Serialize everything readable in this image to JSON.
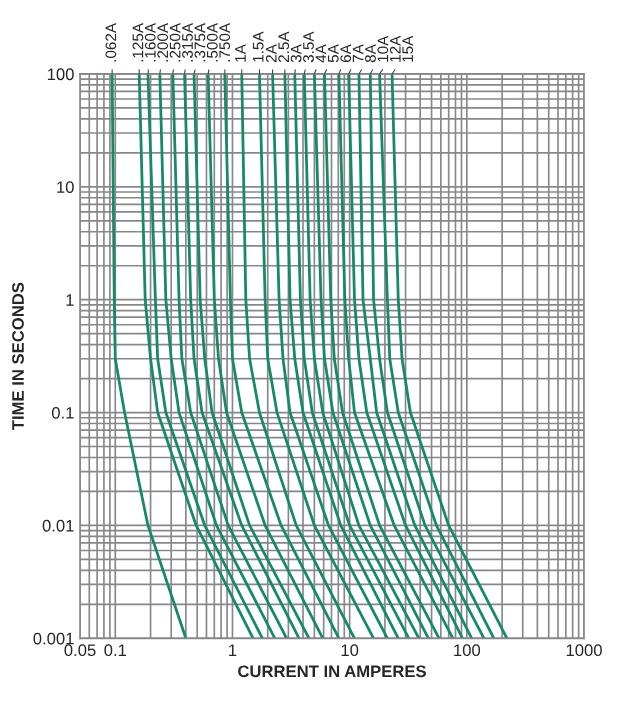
{
  "chart_data": {
    "type": "line",
    "xlabel": "CURRENT IN AMPERES",
    "ylabel": "TIME IN SECONDS",
    "log": "xy",
    "grid": true,
    "marker": "none",
    "line_style": "solid",
    "xlim": [
      0.05,
      1000
    ],
    "xticks": [
      0.05,
      0.1,
      1,
      10,
      100,
      1000
    ],
    "ylim": [
      0.001,
      100
    ],
    "yticks": [
      0.001,
      0.01,
      0.1,
      1,
      10,
      100
    ],
    "series": [
      {
        "name": ".062A",
        "color": "#168a68",
        "x": [
          0.094,
          0.098,
          0.1,
          0.12,
          0.19,
          0.4
        ],
        "values": [
          100,
          1,
          0.3,
          0.1,
          0.01,
          0.001
        ]
      },
      {
        "name": ".125A",
        "color": "#168a68",
        "x": [
          0.16,
          0.18,
          0.2,
          0.23,
          0.49,
          1.5
        ],
        "values": [
          100,
          1,
          0.3,
          0.1,
          0.01,
          0.001
        ]
      },
      {
        "name": ".160A",
        "color": "#168a68",
        "x": [
          0.19,
          0.22,
          0.23,
          0.27,
          0.58,
          1.8
        ],
        "values": [
          100,
          1,
          0.3,
          0.1,
          0.01,
          0.001
        ]
      },
      {
        "name": ".200A",
        "color": "#168a68",
        "x": [
          0.24,
          0.27,
          0.3,
          0.35,
          0.73,
          2.3
        ],
        "values": [
          100,
          1,
          0.3,
          0.1,
          0.01,
          0.001
        ]
      },
      {
        "name": ".250A",
        "color": "#168a68",
        "x": [
          0.31,
          0.35,
          0.37,
          0.44,
          0.92,
          2.9
        ],
        "values": [
          100,
          1,
          0.3,
          0.1,
          0.01,
          0.001
        ]
      },
      {
        "name": ".315A",
        "color": "#168a68",
        "x": [
          0.39,
          0.44,
          0.47,
          0.55,
          1.2,
          3.7
        ],
        "values": [
          100,
          1,
          0.3,
          0.1,
          0.01,
          0.001
        ]
      },
      {
        "name": ".375A",
        "color": "#168a68",
        "x": [
          0.47,
          0.53,
          0.58,
          0.67,
          1.4,
          4.5
        ],
        "values": [
          100,
          1,
          0.3,
          0.1,
          0.01,
          0.001
        ]
      },
      {
        "name": ".500A",
        "color": "#168a68",
        "x": [
          0.62,
          0.7,
          0.76,
          0.89,
          1.9,
          5.9
        ],
        "values": [
          100,
          1,
          0.3,
          0.1,
          0.01,
          0.001
        ]
      },
      {
        "name": ".750A",
        "color": "#168a68",
        "x": [
          0.86,
          0.96,
          1.0,
          1.2,
          2.6,
          8.1
        ],
        "values": [
          100,
          1,
          0.3,
          0.1,
          0.01,
          0.001
        ]
      },
      {
        "name": "1A",
        "color": "#168a68",
        "x": [
          1.2,
          1.3,
          1.4,
          1.7,
          3.5,
          11
        ],
        "values": [
          100,
          1,
          0.3,
          0.1,
          0.01,
          0.001
        ]
      },
      {
        "name": "1.5A",
        "color": "#168a68",
        "x": [
          1.7,
          1.9,
          2.0,
          2.4,
          5.0,
          16
        ],
        "values": [
          100,
          1,
          0.3,
          0.1,
          0.01,
          0.001
        ]
      },
      {
        "name": "2A",
        "color": "#168a68",
        "x": [
          2.2,
          2.5,
          2.7,
          3.1,
          6.6,
          21
        ],
        "values": [
          100,
          1,
          0.3,
          0.1,
          0.01,
          0.001
        ]
      },
      {
        "name": "2.5A",
        "color": "#168a68",
        "x": [
          2.8,
          3.1,
          3.4,
          4.0,
          8.4,
          26
        ],
        "values": [
          100,
          1,
          0.3,
          0.1,
          0.01,
          0.001
        ]
      },
      {
        "name": "3A",
        "color": "#168a68",
        "x": [
          3.4,
          3.8,
          4.1,
          4.8,
          10,
          32
        ],
        "values": [
          100,
          1,
          0.3,
          0.1,
          0.01,
          0.001
        ]
      },
      {
        "name": "3.5A",
        "color": "#168a68",
        "x": [
          4.1,
          4.6,
          5.0,
          5.9,
          12,
          39
        ],
        "values": [
          100,
          1,
          0.3,
          0.1,
          0.01,
          0.001
        ]
      },
      {
        "name": "4A",
        "color": "#168a68",
        "x": [
          5.0,
          5.7,
          6.1,
          7.2,
          15,
          47
        ],
        "values": [
          100,
          1,
          0.3,
          0.1,
          0.01,
          0.001
        ]
      },
      {
        "name": "5A",
        "color": "#168a68",
        "x": [
          6.1,
          6.9,
          7.4,
          8.7,
          18,
          58
        ],
        "values": [
          100,
          1,
          0.3,
          0.1,
          0.01,
          0.001
        ]
      },
      {
        "name": "6A",
        "color": "#168a68",
        "x": [
          8.1,
          9.1,
          9.8,
          11,
          24,
          76
        ],
        "values": [
          100,
          1,
          0.3,
          0.1,
          0.01,
          0.001
        ]
      },
      {
        "name": "7A",
        "color": "#168a68",
        "x": [
          9.8,
          11,
          12,
          14,
          30,
          92
        ],
        "values": [
          100,
          1,
          0.3,
          0.1,
          0.01,
          0.001
        ]
      },
      {
        "name": "8A",
        "color": "#168a68",
        "x": [
          12,
          13,
          15,
          17,
          36,
          110
        ],
        "values": [
          100,
          1,
          0.3,
          0.1,
          0.01,
          0.001
        ]
      },
      {
        "name": "10A",
        "color": "#168a68",
        "x": [
          15,
          16,
          18,
          21,
          44,
          140
        ],
        "values": [
          100,
          1,
          0.3,
          0.1,
          0.01,
          0.001
        ]
      },
      {
        "name": "12A",
        "color": "#168a68",
        "x": [
          18,
          21,
          22,
          26,
          55,
          170
        ],
        "values": [
          100,
          1,
          0.3,
          0.1,
          0.01,
          0.001
        ]
      },
      {
        "name": "15A",
        "color": "#168a68",
        "x": [
          23,
          26,
          28,
          33,
          70,
          220
        ],
        "values": [
          100,
          1,
          0.3,
          0.1,
          0.01,
          0.001
        ]
      }
    ]
  }
}
